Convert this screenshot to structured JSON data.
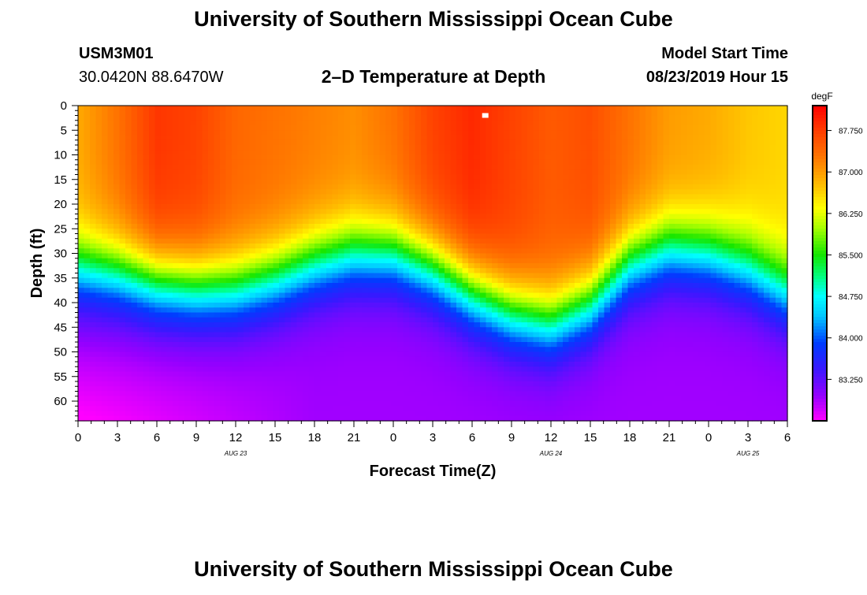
{
  "page": {
    "title": "University of Southern Mississippi Ocean Cube",
    "footer_title": "University of Southern Mississippi Ocean Cube"
  },
  "header": {
    "station_id": "USM3M01",
    "coordinates": "30.0420N 88.6470W",
    "plot_title": "2–D Temperature at Depth",
    "start_label": "Model Start Time",
    "start_value": "08/23/2019 Hour 15"
  },
  "chart_data": {
    "type": "heatmap",
    "title": "2–D Temperature at Depth",
    "xlabel": "Forecast Time(Z)",
    "ylabel": "Depth (ft)",
    "xlim": [
      0,
      54
    ],
    "ylim": [
      64,
      0
    ],
    "x_ticks": [
      0,
      3,
      6,
      9,
      12,
      15,
      18,
      21,
      24,
      27,
      30,
      33,
      36,
      39,
      42,
      45,
      48,
      51,
      54
    ],
    "x_tick_labels": [
      "0",
      "3",
      "6",
      "9",
      "12",
      "15",
      "18",
      "21",
      "0",
      "3",
      "6",
      "9",
      "12",
      "15",
      "18",
      "21",
      "0",
      "3",
      "6"
    ],
    "date_labels": [
      {
        "label": "AUG 23",
        "x": 12
      },
      {
        "label": "AUG 24",
        "x": 36
      },
      {
        "label": "AUG 25",
        "x": 51
      }
    ],
    "y_ticks": [
      0,
      5,
      10,
      15,
      20,
      25,
      30,
      35,
      40,
      45,
      50,
      55,
      60
    ],
    "y_tick_labels": [
      "0",
      "5",
      "10",
      "15",
      "20",
      "25",
      "30",
      "35",
      "40",
      "45",
      "50",
      "55",
      "60"
    ],
    "colorbar": {
      "units": "degF",
      "min": 82.5,
      "max": 88.2,
      "ticks": [
        87.75,
        87.0,
        86.25,
        85.5,
        84.75,
        84.0,
        83.25
      ],
      "tick_labels": [
        "87.750",
        "87.000",
        "86.250",
        "85.500",
        "84.750",
        "84.000",
        "83.250"
      ]
    },
    "thermocline_depth_ft": {
      "x": [
        0,
        3,
        6,
        9,
        12,
        15,
        18,
        21,
        24,
        27,
        30,
        33,
        36,
        39,
        42,
        45,
        48,
        51,
        54
      ],
      "depth": [
        33,
        34,
        36,
        37,
        37,
        35,
        32,
        30,
        30,
        33,
        38,
        42,
        44,
        40,
        32,
        29,
        30,
        33,
        38
      ]
    },
    "surface_temp_degF": {
      "x": [
        0,
        3,
        6,
        9,
        12,
        15,
        18,
        21,
        24,
        27,
        30,
        33,
        36,
        39,
        42,
        45,
        48,
        51,
        54
      ],
      "temp": [
        86.9,
        87.3,
        87.8,
        87.7,
        87.4,
        87.3,
        87.2,
        87.1,
        87.3,
        87.7,
        87.9,
        87.7,
        87.5,
        87.6,
        87.3,
        87.0,
        86.9,
        86.7,
        86.6
      ]
    },
    "bottom_temp_degF": 82.9,
    "corner_min_temp_degF": 82.5,
    "marker": {
      "x": 31,
      "depth": 2
    }
  }
}
